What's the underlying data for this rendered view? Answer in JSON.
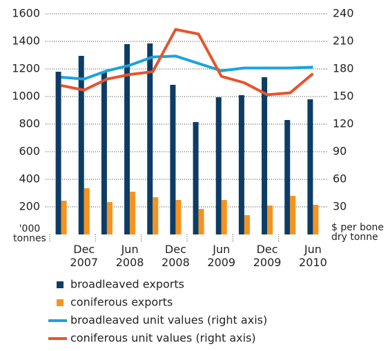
{
  "chart_data": {
    "type": "bar",
    "categories": [
      null,
      "Dec 2007",
      null,
      "Jun 2008",
      null,
      "Dec 2008",
      null,
      "Jun 2009",
      null,
      "Dec 2009",
      null,
      "Jun 2010"
    ],
    "series": [
      {
        "name": "broadleaved exports",
        "type": "bar",
        "color": "#0d3d66",
        "values": [
          1180,
          1295,
          1180,
          1380,
          1385,
          1085,
          815,
          995,
          1010,
          1140,
          830,
          980
        ]
      },
      {
        "name": "coniferous exports",
        "type": "bar",
        "color": "#f5931e",
        "values": [
          245,
          335,
          235,
          310,
          270,
          250,
          185,
          250,
          140,
          210,
          280,
          215
        ]
      },
      {
        "name": "broadleaved unit values (right axis)",
        "type": "line",
        "axis": "y2",
        "color": "#1aa3dd",
        "values": [
          171,
          169,
          178,
          184,
          193,
          194,
          186,
          178,
          181,
          181,
          181,
          182
        ]
      },
      {
        "name": "coniferous unit values (right axis)",
        "type": "line",
        "axis": "y2",
        "color": "#e8532b",
        "values": [
          162,
          157,
          169,
          174,
          177,
          223,
          218,
          172,
          165,
          152,
          154,
          175
        ]
      }
    ],
    "ylim": [
      0,
      1600
    ],
    "yticks": [
      200,
      400,
      600,
      800,
      1000,
      1200,
      1400,
      1600
    ],
    "y2lim": [
      0,
      240
    ],
    "y2ticks": [
      30,
      60,
      90,
      120,
      150,
      180,
      210,
      240
    ],
    "y_label": "'000 tonnes",
    "y2_label": "$ per bone dry tonne",
    "grid": true
  }
}
